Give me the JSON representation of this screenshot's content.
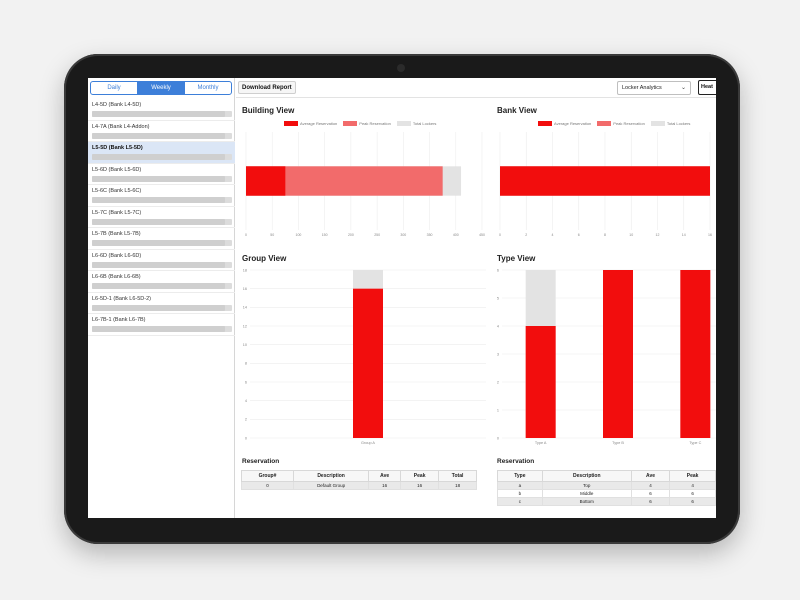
{
  "sidebar": {
    "tabs": [
      {
        "label": "Daily",
        "active": false
      },
      {
        "label": "Weekly",
        "active": true
      },
      {
        "label": "Monthly",
        "active": false
      }
    ],
    "items": [
      {
        "name": "L4-5D (Bank L4-5D)",
        "fill": 0.95,
        "selected": false
      },
      {
        "name": "L4-7A (Bank L4-Addon)",
        "fill": 0.95,
        "selected": false
      },
      {
        "name": "L5-5D (Bank L5-5D)",
        "fill": 0.95,
        "selected": true
      },
      {
        "name": "L5-6D (Bank L5-6D)",
        "fill": 0.95,
        "selected": false
      },
      {
        "name": "L5-6C (Bank L5-6C)",
        "fill": 0.95,
        "selected": false
      },
      {
        "name": "L5-7C (Bank L5-7C)",
        "fill": 0.95,
        "selected": false
      },
      {
        "name": "L5-7B (Bank L5-7B)",
        "fill": 0.95,
        "selected": false
      },
      {
        "name": "L6-6D (Bank L6-6D)",
        "fill": 0.95,
        "selected": false
      },
      {
        "name": "L6-6B (Bank L6-6B)",
        "fill": 0.95,
        "selected": false
      },
      {
        "name": "L6-5D-1 (Bank L6-5D-2)",
        "fill": 0.95,
        "selected": false
      },
      {
        "name": "L6-7B-1 (Bank L6-7B)",
        "fill": 0.95,
        "selected": false
      }
    ]
  },
  "toolbar": {
    "download_label": "Download Report",
    "analytics_select": "Locker Analytics",
    "heat_button": "Heat"
  },
  "legend": {
    "avg": "Average Reservation",
    "peak": "Peak Reservation",
    "total": "Total Lockers"
  },
  "colors": {
    "avg": "#f20d0d",
    "peak": "#f26b6b",
    "total": "#e3e3e3",
    "accent": "#3d7fd9"
  },
  "chart_data": [
    {
      "id": "building",
      "type": "bar",
      "orientation": "horizontal",
      "title": "Building View",
      "stacked_segments": {
        "average": 75,
        "peak": 375,
        "total": 410
      },
      "xlim": [
        0,
        450
      ],
      "x_ticks": [
        "0",
        "50",
        "100",
        "150",
        "200",
        "250",
        "300",
        "350",
        "400",
        "450"
      ]
    },
    {
      "id": "bank",
      "type": "bar",
      "orientation": "horizontal",
      "title": "Bank View",
      "stacked_segments": {
        "average": 16,
        "peak": 16,
        "total": 16
      },
      "xlim": [
        0,
        16
      ],
      "x_ticks": [
        "0",
        "2",
        "4",
        "6",
        "8",
        "10",
        "12",
        "14",
        "16"
      ]
    },
    {
      "id": "group",
      "type": "bar",
      "title": "Group View",
      "categories": [
        "Group A"
      ],
      "series": [
        {
          "name": "Average Reservation",
          "values": [
            16
          ]
        },
        {
          "name": "Total Lockers",
          "values": [
            18
          ]
        }
      ],
      "ylim": [
        0,
        18
      ],
      "y_ticks": [
        "0",
        "2",
        "4",
        "6",
        "8",
        "10",
        "12",
        "14",
        "16",
        "18"
      ]
    },
    {
      "id": "type",
      "type": "bar",
      "title": "Type View",
      "categories": [
        "Type A",
        "Type B",
        "Type C"
      ],
      "series": [
        {
          "name": "Average Reservation",
          "values": [
            4,
            6,
            6
          ]
        },
        {
          "name": "Total Lockers",
          "values": [
            6,
            6,
            6
          ]
        }
      ],
      "ylim": [
        0,
        6
      ],
      "y_ticks": [
        "0",
        "1",
        "2",
        "3",
        "4",
        "5",
        "6"
      ]
    }
  ],
  "group_table": {
    "title": "Reservation",
    "headers": [
      "Group#",
      "Description",
      "Ave",
      "Peak",
      "Total"
    ],
    "rows": [
      [
        "0",
        "Default Group",
        "16",
        "16",
        "18"
      ]
    ]
  },
  "type_table": {
    "title": "Reservation",
    "headers": [
      "Type",
      "Description",
      "Ave",
      "Peak"
    ],
    "rows": [
      [
        "a",
        "Top",
        "4",
        "4"
      ],
      [
        "b",
        "Middle",
        "6",
        "6"
      ],
      [
        "c",
        "Bottom",
        "6",
        "6"
      ]
    ]
  }
}
